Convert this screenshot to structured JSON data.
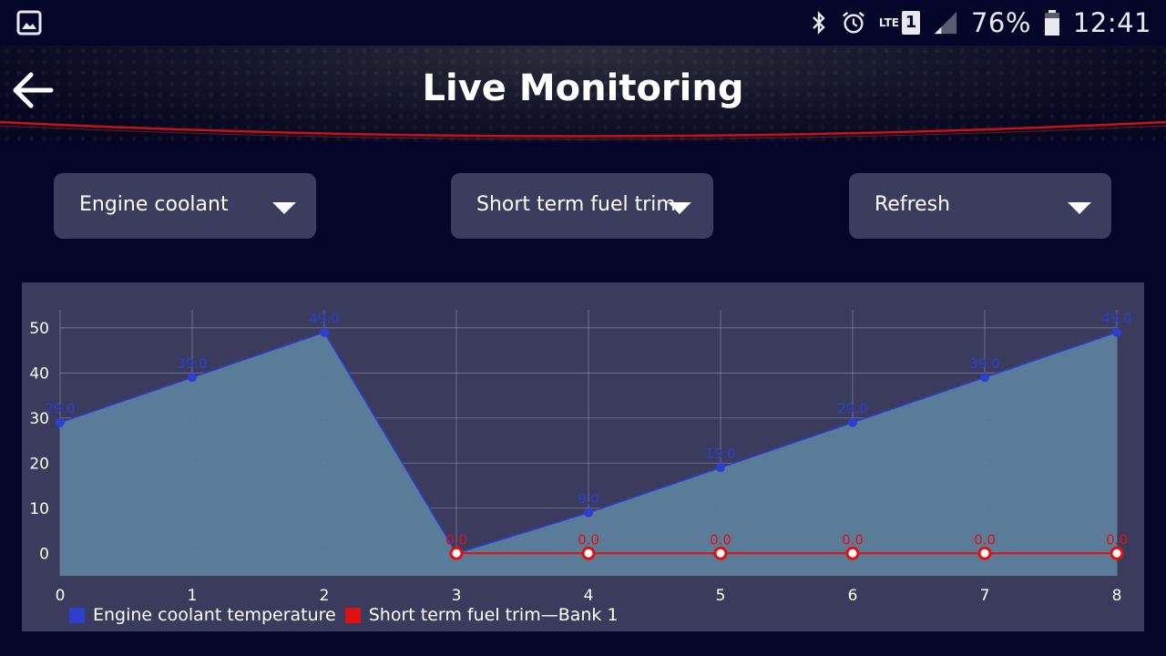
{
  "statusbar": {
    "battery": "76%",
    "clock": "12:41",
    "network": "LTE",
    "sim": "1"
  },
  "header": {
    "title": "Live Monitoring"
  },
  "dropdowns": [
    {
      "label": "Engine coolant"
    },
    {
      "label": "Short term fuel trim"
    },
    {
      "label": "Refresh"
    }
  ],
  "colors": {
    "accent_blue": "#2c3fcf",
    "accent_red": "#e01010",
    "fill_area": "#5c7f9c",
    "panel": "#3b3b5d"
  },
  "chart_data": {
    "type": "line",
    "x": [
      0,
      1,
      2,
      3,
      4,
      5,
      6,
      7,
      8
    ],
    "xlim": [
      0,
      8
    ],
    "ylim": [
      -5,
      54
    ],
    "yticks": [
      0,
      10,
      20,
      30,
      40,
      50
    ],
    "grid": true,
    "legend_position": "bottom-left",
    "series": [
      {
        "name": "Engine coolant temperature",
        "color": "#2c3fcf",
        "fill": true,
        "x": [
          0,
          1,
          2,
          3,
          4,
          5,
          6,
          7,
          8
        ],
        "values": [
          29,
          39,
          49,
          0,
          9,
          19,
          29,
          39,
          49
        ],
        "labels": [
          "29.0",
          "39.0",
          "49.0",
          "0.0",
          "9.0",
          "19.0",
          "29.0",
          "39.0",
          "49.0"
        ]
      },
      {
        "name": "Short term fuel trim—Bank 1",
        "color": "#e01010",
        "fill": false,
        "x": [
          3,
          4,
          5,
          6,
          7,
          8
        ],
        "values": [
          0,
          0,
          0,
          0,
          0,
          0
        ],
        "labels": [
          "0.0",
          "0.0",
          "0.0",
          "0.0",
          "0.0",
          "0.0"
        ]
      }
    ]
  }
}
